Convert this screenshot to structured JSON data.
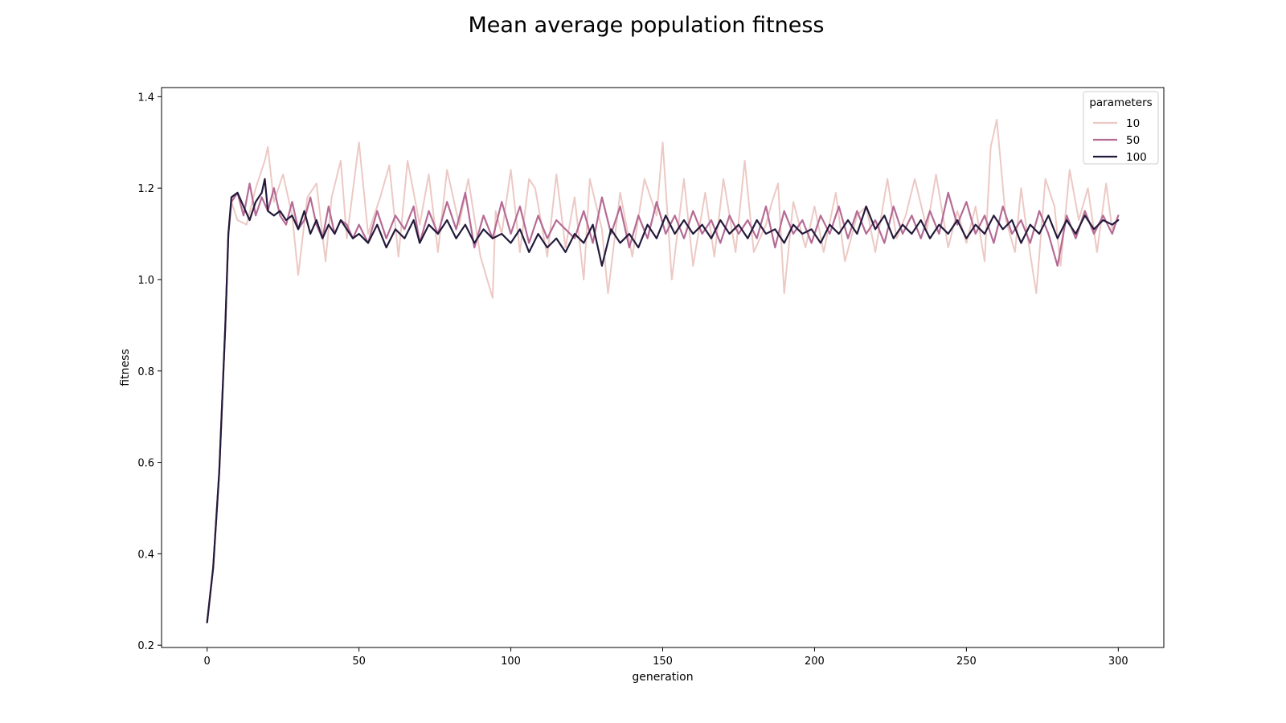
{
  "chart_data": {
    "type": "line",
    "title": "Mean average population fitness",
    "xlabel": "generation",
    "ylabel": "fitness",
    "xlim": [
      -15,
      315
    ],
    "ylim": [
      0.195,
      1.42
    ],
    "xticks": [
      0,
      50,
      100,
      150,
      200,
      250,
      300
    ],
    "yticks": [
      0.2,
      0.4,
      0.6,
      0.8,
      1.0,
      1.2,
      1.4
    ],
    "xtick_labels": [
      "0",
      "50",
      "100",
      "150",
      "200",
      "250",
      "300"
    ],
    "ytick_labels": [
      "0.2",
      "0.4",
      "0.6",
      "0.8",
      "1.0",
      "1.2",
      "1.4"
    ],
    "grid": false,
    "legend": {
      "title": "parameters",
      "placement": "top-right"
    },
    "series": [
      {
        "name": "10",
        "color": "#ecc9c4",
        "x": [
          0,
          2,
          4,
          6,
          7,
          8,
          10,
          13,
          16,
          19,
          20,
          22,
          25,
          28,
          30,
          33,
          36,
          39,
          41,
          44,
          46,
          50,
          53,
          57,
          60,
          63,
          66,
          70,
          73,
          76,
          79,
          83,
          86,
          90,
          94,
          95,
          97,
          100,
          103,
          106,
          108,
          112,
          115,
          118,
          121,
          124,
          126,
          130,
          132,
          136,
          140,
          144,
          148,
          150,
          153,
          157,
          160,
          164,
          167,
          170,
          174,
          177,
          180,
          184,
          186,
          188,
          190,
          193,
          197,
          200,
          203,
          207,
          210,
          214,
          217,
          220,
          224,
          227,
          230,
          233,
          237,
          240,
          244,
          247,
          250,
          253,
          256,
          258,
          260,
          263,
          266,
          268,
          270,
          273,
          276,
          279,
          281,
          284,
          287,
          290,
          293,
          296,
          298,
          300
        ],
        "y": [
          0.25,
          0.37,
          0.58,
          0.9,
          1.1,
          1.17,
          1.13,
          1.12,
          1.2,
          1.26,
          1.29,
          1.17,
          1.23,
          1.14,
          1.01,
          1.18,
          1.21,
          1.04,
          1.18,
          1.26,
          1.09,
          1.3,
          1.1,
          1.18,
          1.25,
          1.05,
          1.26,
          1.12,
          1.23,
          1.06,
          1.24,
          1.12,
          1.22,
          1.05,
          0.96,
          1.15,
          1.1,
          1.24,
          1.06,
          1.22,
          1.2,
          1.05,
          1.23,
          1.07,
          1.18,
          1.0,
          1.22,
          1.11,
          0.97,
          1.19,
          1.05,
          1.22,
          1.14,
          1.3,
          1.0,
          1.22,
          1.03,
          1.19,
          1.05,
          1.22,
          1.06,
          1.26,
          1.06,
          1.12,
          1.17,
          1.21,
          0.97,
          1.17,
          1.07,
          1.16,
          1.06,
          1.19,
          1.04,
          1.14,
          1.16,
          1.06,
          1.22,
          1.09,
          1.14,
          1.22,
          1.11,
          1.23,
          1.07,
          1.15,
          1.08,
          1.16,
          1.04,
          1.29,
          1.35,
          1.13,
          1.06,
          1.2,
          1.1,
          0.97,
          1.22,
          1.16,
          1.03,
          1.24,
          1.13,
          1.2,
          1.06,
          1.21,
          1.11,
          1.14
        ]
      },
      {
        "name": "50",
        "color": "#b56b94",
        "x": [
          0,
          2,
          4,
          6,
          7,
          8,
          10,
          12,
          14,
          16,
          18,
          20,
          22,
          24,
          26,
          28,
          30,
          32,
          34,
          36,
          38,
          40,
          42,
          44,
          46,
          48,
          50,
          53,
          56,
          59,
          62,
          65,
          68,
          70,
          73,
          76,
          79,
          82,
          85,
          88,
          91,
          94,
          97,
          100,
          103,
          106,
          109,
          112,
          115,
          118,
          121,
          124,
          127,
          130,
          133,
          136,
          139,
          142,
          145,
          148,
          151,
          154,
          157,
          160,
          163,
          166,
          169,
          172,
          175,
          178,
          181,
          184,
          187,
          190,
          193,
          196,
          199,
          202,
          205,
          208,
          211,
          214,
          217,
          220,
          223,
          226,
          229,
          232,
          235,
          238,
          241,
          244,
          247,
          250,
          253,
          256,
          259,
          262,
          265,
          268,
          271,
          274,
          277,
          280,
          283,
          286,
          289,
          292,
          295,
          298,
          300
        ],
        "y": [
          0.25,
          0.37,
          0.58,
          0.9,
          1.1,
          1.17,
          1.19,
          1.14,
          1.21,
          1.14,
          1.18,
          1.15,
          1.2,
          1.14,
          1.12,
          1.17,
          1.11,
          1.13,
          1.18,
          1.12,
          1.09,
          1.16,
          1.1,
          1.13,
          1.12,
          1.09,
          1.12,
          1.08,
          1.15,
          1.09,
          1.14,
          1.11,
          1.16,
          1.08,
          1.15,
          1.1,
          1.17,
          1.11,
          1.19,
          1.07,
          1.14,
          1.09,
          1.17,
          1.1,
          1.16,
          1.08,
          1.14,
          1.09,
          1.13,
          1.11,
          1.09,
          1.15,
          1.08,
          1.18,
          1.1,
          1.16,
          1.07,
          1.14,
          1.09,
          1.17,
          1.1,
          1.14,
          1.09,
          1.15,
          1.1,
          1.13,
          1.08,
          1.14,
          1.1,
          1.13,
          1.09,
          1.16,
          1.07,
          1.15,
          1.1,
          1.13,
          1.08,
          1.14,
          1.1,
          1.16,
          1.09,
          1.15,
          1.1,
          1.13,
          1.08,
          1.16,
          1.1,
          1.14,
          1.09,
          1.15,
          1.1,
          1.19,
          1.12,
          1.17,
          1.1,
          1.14,
          1.08,
          1.16,
          1.1,
          1.13,
          1.08,
          1.15,
          1.1,
          1.03,
          1.14,
          1.09,
          1.15,
          1.1,
          1.14,
          1.1,
          1.14
        ]
      },
      {
        "name": "100",
        "color": "#231a3b",
        "x": [
          0,
          2,
          4,
          6,
          7,
          8,
          10,
          12,
          14,
          16,
          18,
          19,
          20,
          22,
          24,
          26,
          28,
          30,
          32,
          34,
          36,
          38,
          40,
          42,
          44,
          46,
          48,
          50,
          53,
          56,
          59,
          62,
          65,
          68,
          70,
          73,
          76,
          79,
          82,
          85,
          88,
          91,
          94,
          97,
          100,
          103,
          106,
          109,
          112,
          115,
          118,
          121,
          124,
          127,
          130,
          133,
          136,
          139,
          142,
          145,
          148,
          151,
          154,
          157,
          160,
          163,
          166,
          169,
          172,
          175,
          178,
          181,
          184,
          187,
          190,
          193,
          196,
          199,
          202,
          205,
          208,
          211,
          214,
          217,
          220,
          223,
          226,
          229,
          232,
          235,
          238,
          241,
          244,
          247,
          250,
          253,
          256,
          259,
          262,
          265,
          268,
          271,
          274,
          277,
          280,
          283,
          286,
          289,
          292,
          295,
          298,
          300
        ],
        "y": [
          0.25,
          0.37,
          0.58,
          0.9,
          1.1,
          1.18,
          1.19,
          1.16,
          1.13,
          1.17,
          1.19,
          1.22,
          1.15,
          1.14,
          1.15,
          1.13,
          1.14,
          1.11,
          1.15,
          1.1,
          1.13,
          1.09,
          1.12,
          1.1,
          1.13,
          1.11,
          1.09,
          1.1,
          1.08,
          1.12,
          1.07,
          1.11,
          1.09,
          1.13,
          1.08,
          1.12,
          1.1,
          1.13,
          1.09,
          1.12,
          1.08,
          1.11,
          1.09,
          1.1,
          1.08,
          1.11,
          1.06,
          1.1,
          1.07,
          1.09,
          1.06,
          1.1,
          1.08,
          1.12,
          1.03,
          1.11,
          1.08,
          1.1,
          1.07,
          1.12,
          1.09,
          1.14,
          1.1,
          1.13,
          1.1,
          1.12,
          1.09,
          1.13,
          1.1,
          1.12,
          1.09,
          1.13,
          1.1,
          1.11,
          1.08,
          1.12,
          1.1,
          1.11,
          1.08,
          1.12,
          1.1,
          1.13,
          1.1,
          1.16,
          1.11,
          1.14,
          1.09,
          1.12,
          1.1,
          1.13,
          1.09,
          1.12,
          1.1,
          1.13,
          1.09,
          1.12,
          1.1,
          1.14,
          1.11,
          1.13,
          1.08,
          1.12,
          1.1,
          1.14,
          1.09,
          1.13,
          1.1,
          1.14,
          1.11,
          1.13,
          1.12,
          1.13
        ]
      }
    ]
  }
}
